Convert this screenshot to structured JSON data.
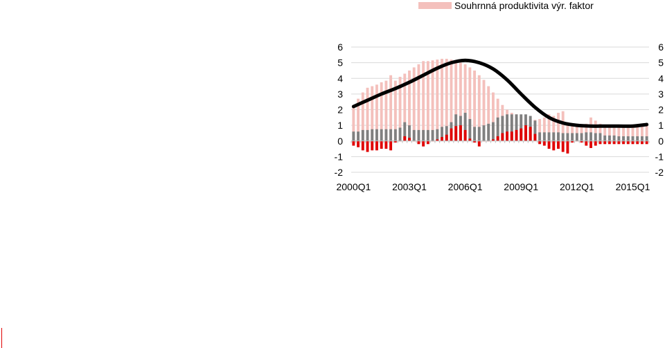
{
  "chart_data": {
    "type": "bar",
    "title": "",
    "xlabel": "",
    "ylabel": "",
    "ylim": [
      -2,
      6
    ],
    "yticks": [
      6,
      5,
      4,
      3,
      2,
      1,
      0,
      -1,
      -2
    ],
    "x_tick_labels": [
      "2000Q1",
      "2003Q1",
      "2006Q1",
      "2009Q1",
      "2012Q1",
      "2015Q1"
    ],
    "grid": true,
    "legend_position": "top",
    "colors": {
      "total_factor_productivity": "#f4c0bc",
      "series_gray": "#808080",
      "series_red": "#e00000",
      "line": "#000000"
    },
    "series": [
      {
        "name": "Souhrnná produktivita výr. faktor",
        "kind": "bar",
        "values": [
          2.3,
          2.7,
          3.1,
          3.4,
          3.5,
          3.6,
          3.75,
          3.85,
          4.2,
          3.85,
          4.1,
          4.3,
          4.5,
          4.7,
          4.9,
          5.1,
          5.1,
          5.15,
          5.2,
          5.25,
          5.25,
          5.2,
          5.1,
          5.0,
          4.9,
          4.7,
          4.5,
          4.2,
          3.9,
          3.5,
          3.1,
          2.7,
          2.3,
          2.0,
          1.8,
          1.7,
          1.55,
          1.5,
          1.4,
          1.35,
          1.4,
          1.5,
          1.7,
          1.6,
          1.8,
          1.9,
          1.2,
          1.1,
          1.0,
          1.0,
          1.1,
          1.5,
          1.3,
          1.1,
          1.0,
          1.0,
          1.0,
          1.0,
          1.0,
          1.0,
          1.0,
          1.0,
          1.0,
          1.0
        ]
      },
      {
        "name": "",
        "kind": "bar",
        "values": [
          0.6,
          0.6,
          0.7,
          0.7,
          0.75,
          0.75,
          0.75,
          0.75,
          0.75,
          0.75,
          0.85,
          1.2,
          1.0,
          0.7,
          0.7,
          0.7,
          0.7,
          0.7,
          0.75,
          0.9,
          0.95,
          1.2,
          1.7,
          1.6,
          1.8,
          1.4,
          0.9,
          0.9,
          1.0,
          1.1,
          1.2,
          1.5,
          1.6,
          1.7,
          1.7,
          1.7,
          1.7,
          1.7,
          1.6,
          1.3,
          0.55,
          0.55,
          0.55,
          0.55,
          0.55,
          0.5,
          0.5,
          0.5,
          0.5,
          0.5,
          0.55,
          0.55,
          0.5,
          0.5,
          0.35,
          0.35,
          0.35,
          0.3,
          0.3,
          0.3,
          0.3,
          0.3,
          0.3,
          0.3
        ]
      },
      {
        "name": "",
        "kind": "bar",
        "values": [
          -0.3,
          -0.4,
          -0.6,
          -0.7,
          -0.6,
          -0.6,
          -0.5,
          -0.5,
          -0.6,
          -0.1,
          0.0,
          0.3,
          0.2,
          0.0,
          -0.2,
          -0.35,
          -0.2,
          0.0,
          0.1,
          0.25,
          0.4,
          0.8,
          0.95,
          1.0,
          0.7,
          0.15,
          -0.1,
          -0.35,
          0.0,
          0.0,
          0.1,
          0.3,
          0.5,
          0.6,
          0.6,
          0.7,
          0.8,
          1.0,
          0.9,
          0.45,
          -0.2,
          -0.3,
          -0.5,
          -0.6,
          -0.5,
          -0.7,
          -0.8,
          -0.1,
          0.0,
          -0.1,
          -0.3,
          -0.45,
          -0.3,
          -0.2,
          -0.2,
          -0.2,
          -0.2,
          -0.2,
          -0.2,
          -0.2,
          -0.2,
          -0.2,
          -0.2,
          -0.2
        ]
      },
      {
        "name": "",
        "kind": "line",
        "x": [
          0,
          3,
          6,
          9,
          12,
          15,
          18,
          21,
          24,
          27,
          30,
          33,
          36,
          39,
          42,
          45,
          48,
          51,
          54,
          57,
          60,
          63
        ],
        "values": [
          2.2,
          2.6,
          3.0,
          3.35,
          3.75,
          4.2,
          4.65,
          5.0,
          5.15,
          5.0,
          4.6,
          3.9,
          3.0,
          2.15,
          1.5,
          1.15,
          1.0,
          0.95,
          0.95,
          0.95,
          0.95,
          1.05
        ]
      }
    ]
  }
}
